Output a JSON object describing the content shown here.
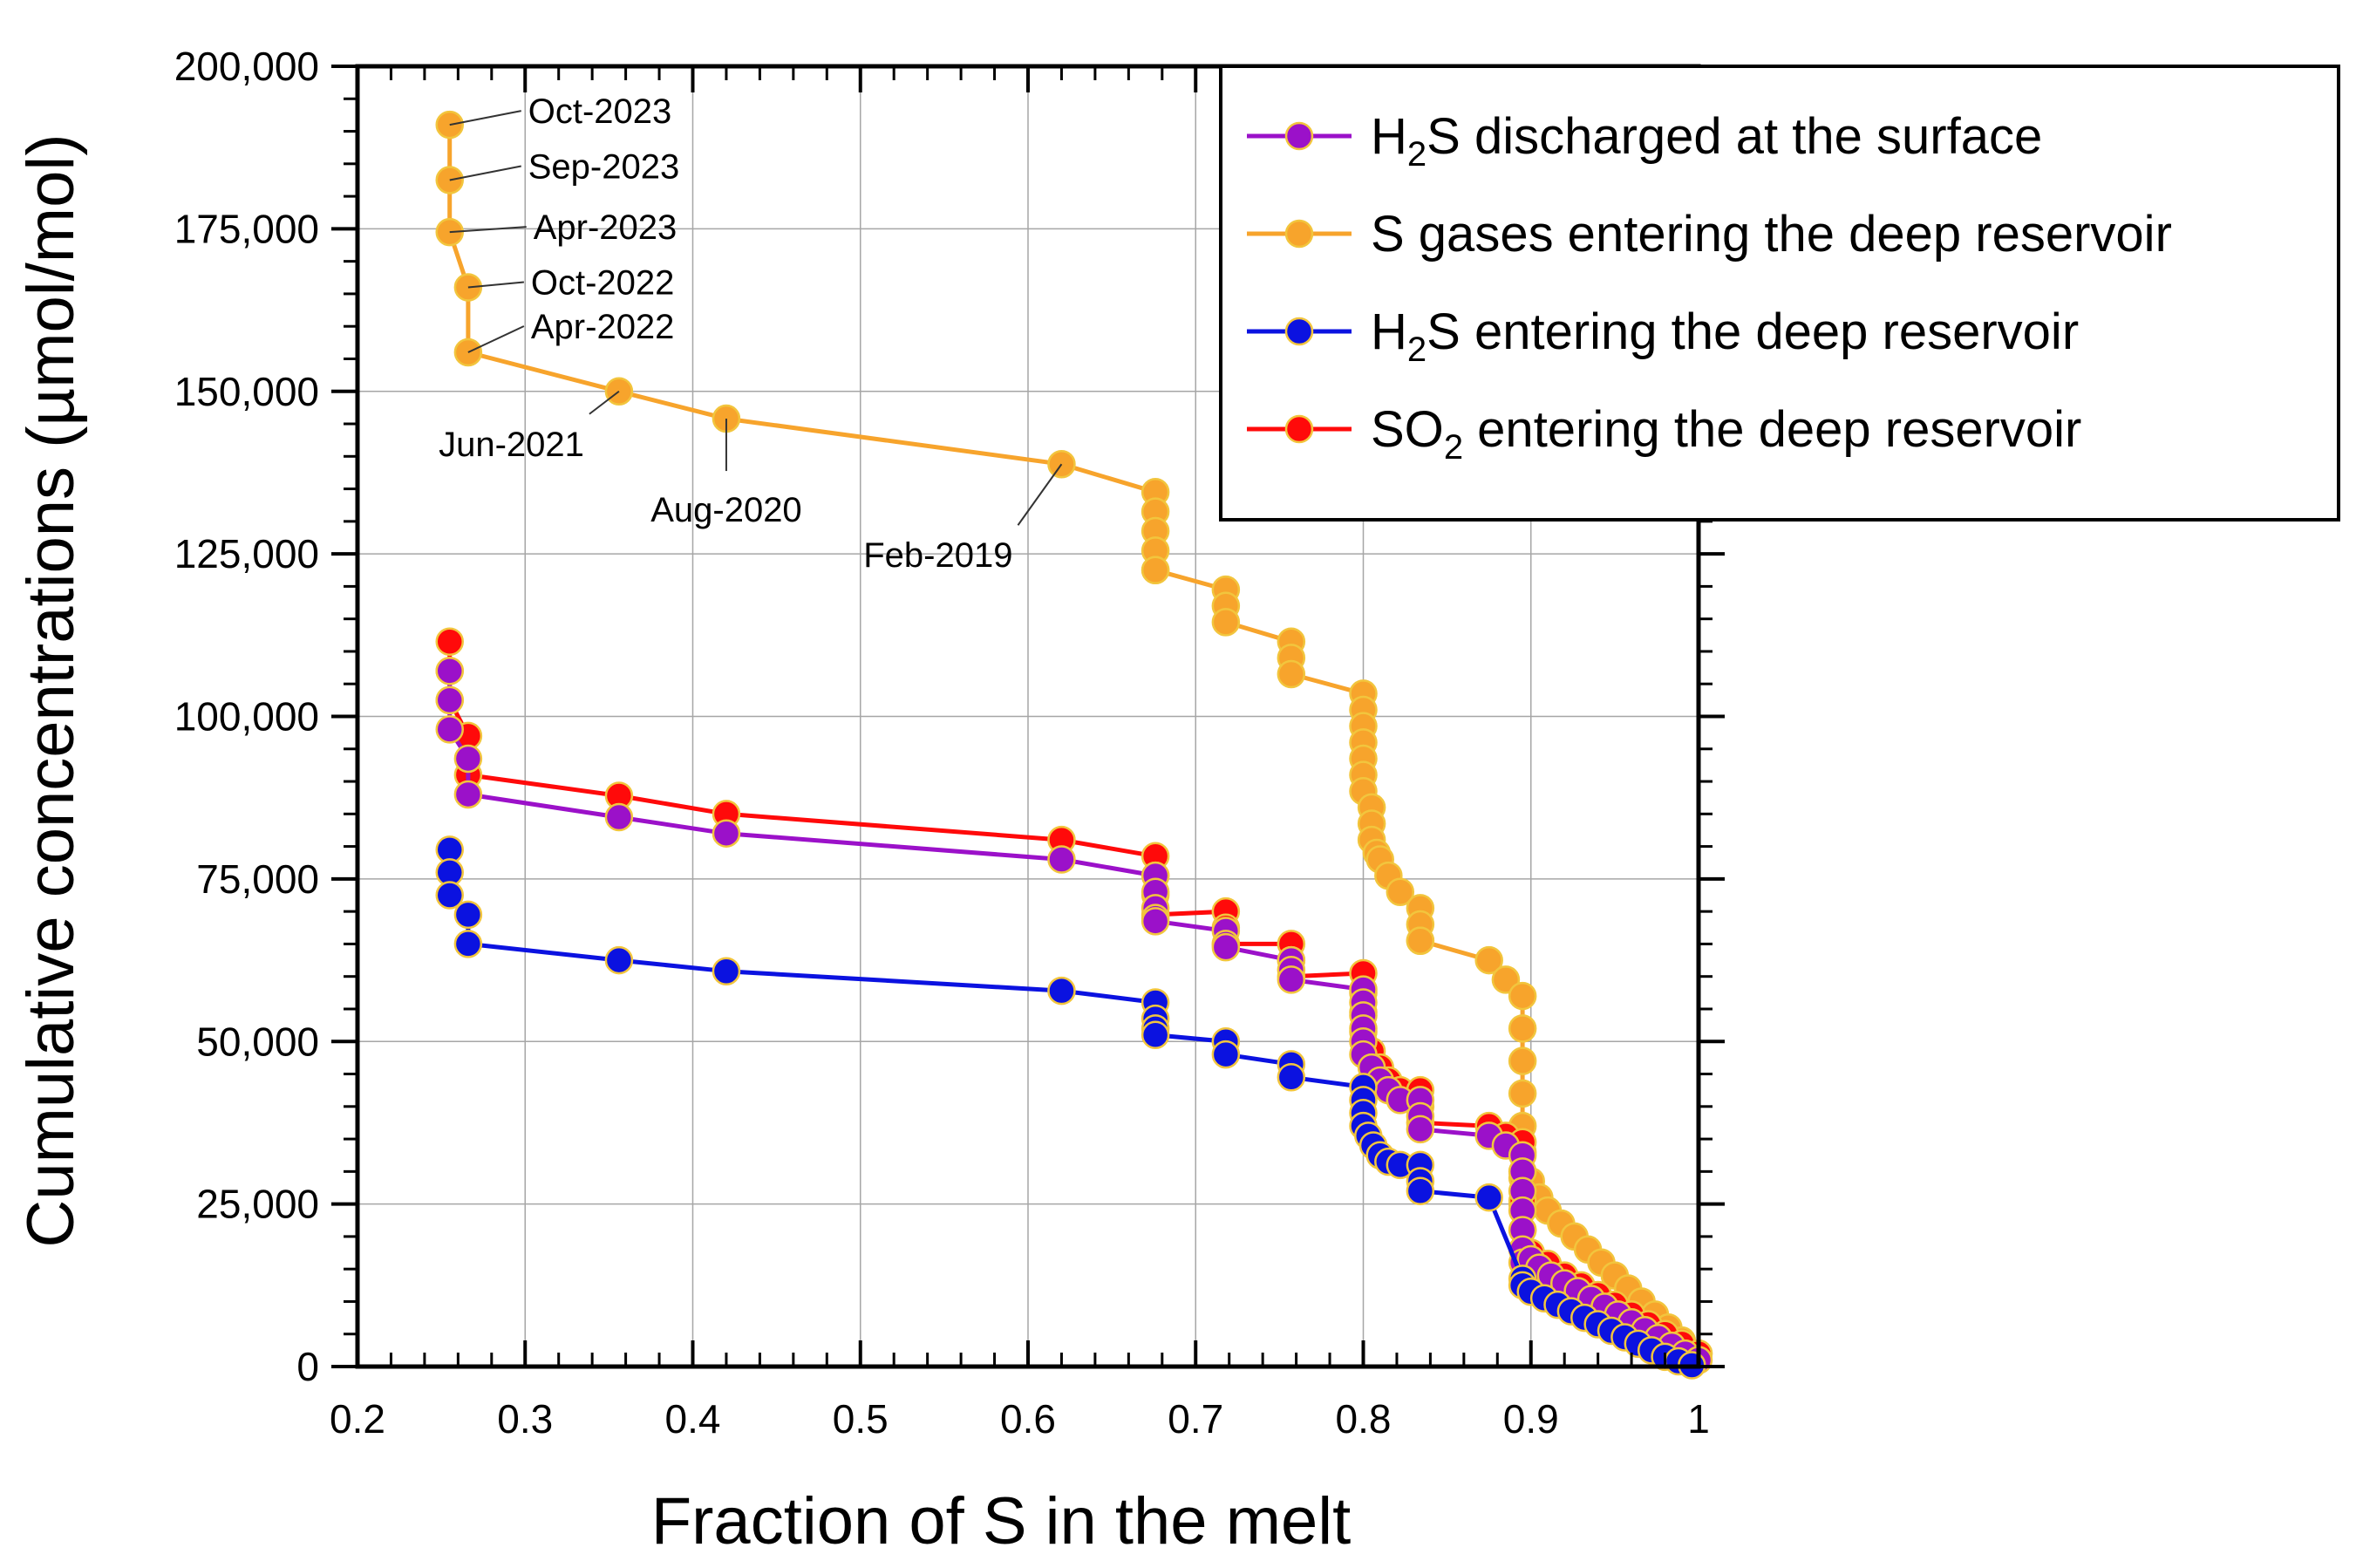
{
  "chart_data": {
    "type": "scatter",
    "title": "",
    "xlabel": "Fraction of S in the melt",
    "ylabel": "Cumulative concentrations (µmol/mol)",
    "xlim": [
      0.2,
      1.0
    ],
    "ylim": [
      0,
      200000
    ],
    "grid": true,
    "x_ticks": [
      0.2,
      0.3,
      0.4,
      0.5,
      0.6,
      0.7,
      0.8,
      0.9,
      1.0
    ],
    "x_tick_labels": [
      "0.2",
      "0.3",
      "0.4",
      "0.5",
      "0.6",
      "0.7",
      "0.8",
      "0.9",
      "1"
    ],
    "y_ticks": [
      0,
      25000,
      50000,
      75000,
      100000,
      125000,
      150000,
      175000,
      200000
    ],
    "y_tick_labels": [
      "0",
      "25,000",
      "50,000",
      "75,000",
      "100,000",
      "125,000",
      "150,000",
      "175,000",
      "200,000"
    ],
    "legend": {
      "position": "top-right",
      "entries": [
        {
          "prefix": "H",
          "sub": "2",
          "suffix": "S discharged at the surface",
          "color": "#9b11c9"
        },
        {
          "prefix": "S gases entering the deep reservoir",
          "sub": "",
          "suffix": "",
          "color": "#f7a42c"
        },
        {
          "prefix": "H",
          "sub": "2",
          "suffix": "S entering the deep reservoir",
          "color": "#0b12e0"
        },
        {
          "prefix": "SO",
          "sub": "2",
          "suffix": " entering the deep reservoir",
          "color": "#ff0a0a"
        }
      ]
    },
    "series": [
      {
        "name": "S gases entering the deep reservoir",
        "color": "#f7a42c",
        "x": [
          0.255,
          0.255,
          0.255,
          0.266,
          0.266,
          0.356,
          0.42,
          0.62,
          0.676,
          0.676,
          0.676,
          0.676,
          0.676,
          0.676,
          0.718,
          0.718,
          0.718,
          0.757,
          0.757,
          0.757,
          0.8,
          0.8,
          0.8,
          0.8,
          0.8,
          0.8,
          0.8,
          0.805,
          0.805,
          0.805,
          0.808,
          0.81,
          0.815,
          0.822,
          0.834,
          0.834,
          0.834,
          0.834,
          0.875,
          0.885,
          0.895,
          0.895,
          0.895,
          0.895,
          0.895,
          0.895,
          0.895,
          0.895,
          0.895,
          0.895,
          0.9,
          0.905,
          0.91,
          0.918,
          0.926,
          0.934,
          0.942,
          0.95,
          0.958,
          0.966,
          0.974,
          0.982,
          0.99,
          1.0
        ],
        "y": [
          191000,
          182500,
          174500,
          166000,
          156000,
          150000,
          145800,
          138800,
          134500,
          131500,
          128500,
          125500,
          122500,
          122500,
          119500,
          117000,
          114500,
          111500,
          109000,
          106500,
          103500,
          101000,
          98500,
          96000,
          93500,
          91000,
          88500,
          86000,
          83500,
          81000,
          79000,
          78000,
          75500,
          73000,
          70500,
          68000,
          65500,
          65500,
          62500,
          59500,
          57000,
          52000,
          47000,
          42000,
          37000,
          33000,
          29000,
          25000,
          21000,
          18000,
          28500,
          26000,
          24000,
          22000,
          20000,
          18000,
          16000,
          14000,
          12000,
          10000,
          8000,
          6000,
          4000,
          2000
        ]
      },
      {
        "name": "SO2 entering the deep reservoir",
        "color": "#ff0a0a",
        "x": [
          0.255,
          0.255,
          0.255,
          0.266,
          0.266,
          0.356,
          0.42,
          0.62,
          0.676,
          0.676,
          0.676,
          0.676,
          0.718,
          0.718,
          0.718,
          0.757,
          0.757,
          0.757,
          0.8,
          0.8,
          0.8,
          0.8,
          0.805,
          0.81,
          0.815,
          0.822,
          0.834,
          0.834,
          0.834,
          0.875,
          0.885,
          0.895,
          0.895,
          0.895,
          0.9,
          0.91,
          0.92,
          0.93,
          0.94,
          0.95,
          0.96,
          0.97,
          0.98,
          0.99,
          1.0
        ],
        "y": [
          111500,
          107000,
          102500,
          97000,
          91000,
          87800,
          85000,
          81000,
          78500,
          75500,
          72500,
          69500,
          70000,
          67500,
          65000,
          65000,
          62500,
          60000,
          60500,
          57500,
          54500,
          51500,
          48500,
          46000,
          44000,
          42500,
          42500,
          40000,
          37500,
          37000,
          35500,
          34500,
          30000,
          25500,
          17500,
          15800,
          14000,
          12500,
          11000,
          9500,
          8000,
          6500,
          5000,
          3500,
          2000
        ]
      },
      {
        "name": "H2S discharged at the surface",
        "color": "#9b11c9",
        "x": [
          0.255,
          0.255,
          0.255,
          0.266,
          0.266,
          0.356,
          0.42,
          0.62,
          0.676,
          0.676,
          0.676,
          0.676,
          0.676,
          0.718,
          0.718,
          0.718,
          0.757,
          0.757,
          0.757,
          0.8,
          0.8,
          0.8,
          0.8,
          0.8,
          0.8,
          0.805,
          0.81,
          0.815,
          0.822,
          0.834,
          0.834,
          0.834,
          0.875,
          0.885,
          0.895,
          0.895,
          0.895,
          0.895,
          0.895,
          0.895,
          0.895,
          0.9,
          0.905,
          0.912,
          0.92,
          0.928,
          0.936,
          0.944,
          0.952,
          0.96,
          0.968,
          0.976,
          0.984,
          0.992,
          1.0
        ],
        "y": [
          107000,
          102500,
          98000,
          93500,
          88000,
          84500,
          82000,
          78000,
          75500,
          73000,
          70500,
          69000,
          68500,
          67000,
          65000,
          64500,
          62500,
          61000,
          59500,
          58000,
          56000,
          54000,
          52000,
          50000,
          48000,
          46000,
          44000,
          42500,
          41000,
          41000,
          38500,
          36500,
          35500,
          34000,
          32500,
          30000,
          27000,
          24000,
          21000,
          18000,
          16000,
          16500,
          15200,
          14000,
          12800,
          11600,
          10400,
          9200,
          8000,
          6800,
          5600,
          4400,
          3200,
          2000,
          1000
        ]
      },
      {
        "name": "H2S entering the deep reservoir",
        "color": "#0b12e0",
        "x": [
          0.255,
          0.255,
          0.255,
          0.266,
          0.266,
          0.356,
          0.42,
          0.62,
          0.676,
          0.676,
          0.676,
          0.676,
          0.718,
          0.718,
          0.757,
          0.757,
          0.8,
          0.8,
          0.8,
          0.8,
          0.803,
          0.806,
          0.81,
          0.815,
          0.822,
          0.834,
          0.834,
          0.834,
          0.875,
          0.895,
          0.895,
          0.9,
          0.908,
          0.916,
          0.924,
          0.932,
          0.94,
          0.948,
          0.956,
          0.964,
          0.972,
          0.98,
          0.988,
          0.996
        ],
        "y": [
          79500,
          76000,
          72500,
          69500,
          65000,
          62500,
          60800,
          57800,
          56000,
          53500,
          52000,
          51000,
          50000,
          48000,
          46500,
          44500,
          43000,
          41000,
          39000,
          37000,
          35500,
          34000,
          32500,
          31500,
          31000,
          31000,
          28500,
          27000,
          26000,
          13500,
          12500,
          11500,
          10500,
          9500,
          8500,
          7500,
          6500,
          5500,
          4500,
          3500,
          2500,
          1500,
          800,
          200
        ]
      }
    ],
    "annotations": [
      {
        "text": "Oct-2023",
        "x": 0.255,
        "y": 191000
      },
      {
        "text": "Sep-2023",
        "x": 0.255,
        "y": 182500
      },
      {
        "text": "Apr-2023",
        "x": 0.255,
        "y": 174500
      },
      {
        "text": "Oct-2022",
        "x": 0.266,
        "y": 166000
      },
      {
        "text": "Apr-2022",
        "x": 0.266,
        "y": 156000
      },
      {
        "text": "Jun-2021",
        "x": 0.356,
        "y": 150000
      },
      {
        "text": "Aug-2020",
        "x": 0.42,
        "y": 145800
      },
      {
        "text": "Feb-2019",
        "x": 0.62,
        "y": 138800
      }
    ]
  }
}
